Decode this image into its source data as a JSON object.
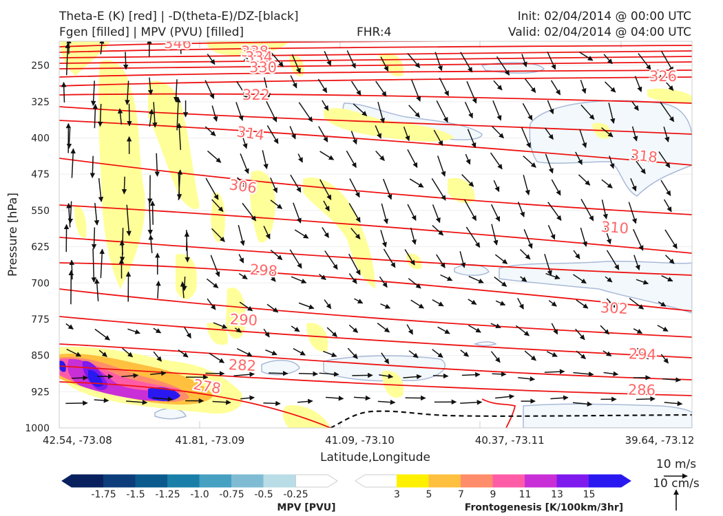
{
  "chart_data": {
    "type": "cross-section",
    "title_left_1": "Theta-E (K) [red] | -D(theta-E)/DZ-[black]",
    "title_left_2": "Fgen [filled] | MPV (PVU) [filled]",
    "title_center": "FHR:4",
    "title_right_1": "Init: 02/04/2014 @ 00:00 UTC",
    "title_right_2": "Valid: 02/04/2014 @ 04:00 UTC",
    "ylabel": "Pressure [hPa]",
    "xlabel": "Latitude,Longitude",
    "y_ticks": [
      "250",
      "325",
      "400",
      "475",
      "550",
      "625",
      "700",
      "775",
      "850",
      "925",
      "1000"
    ],
    "x_ticks": [
      "42.54, -73.08",
      "41.81, -73.09",
      "41.09, -73.10",
      "40.37, -73.11",
      "39.64, -73.12"
    ],
    "ylim": [
      1000,
      200
    ],
    "theta_e_labels": [
      "346",
      "338",
      "334",
      "330",
      "326",
      "322",
      "314",
      "318",
      "306",
      "310",
      "298",
      "302",
      "290",
      "294",
      "282",
      "286",
      "278"
    ],
    "mpv_colorbar": {
      "label": "MPV [PVU]",
      "ticks": [
        "-1.75",
        "-1.5",
        "-1.25",
        "-1.0",
        "-0.75",
        "-0.5",
        "-0.25"
      ],
      "colors": [
        "#08205e",
        "#0c3d7a",
        "#0a5a8e",
        "#1a7fa8",
        "#45a0c2",
        "#7fbcd4",
        "#b9dde6",
        "#ffffff"
      ]
    },
    "fgen_colorbar": {
      "label": "Frontogenesis [K/100km/3hr]",
      "ticks": [
        "3",
        "5",
        "7",
        "9",
        "11",
        "13",
        "15"
      ],
      "colors": [
        "#ffffff",
        "#fff000",
        "#ffc040",
        "#ff8c6a",
        "#ff5ca8",
        "#c92fd6",
        "#7e1aee",
        "#2a18f0"
      ]
    },
    "vector_key": {
      "horizontal": "10 m/s",
      "vertical": "10 cm/s"
    },
    "colors": {
      "theta_e": "#ee1111",
      "theta_e_label": "#ff6666",
      "mpv_contour": "#a9b9d8",
      "mpv_fill": "#f2f8fb",
      "fgen_light": "#ffff99"
    }
  }
}
